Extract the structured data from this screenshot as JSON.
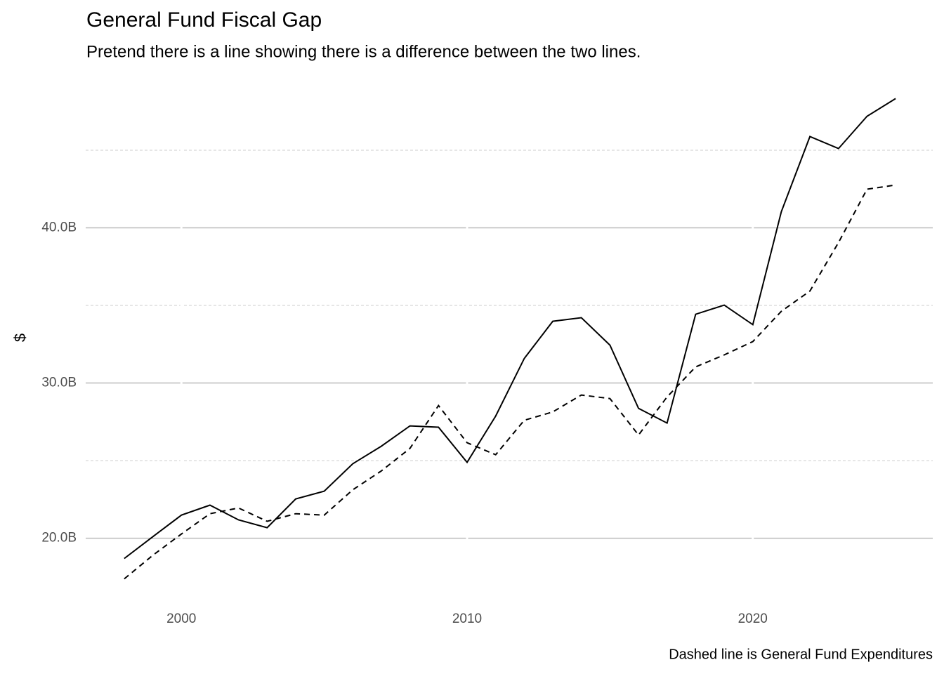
{
  "chart_data": {
    "type": "line",
    "title": "General Fund Fiscal Gap",
    "subtitle": "Pretend there is a line showing there is a difference between the two lines.",
    "y_label": "$",
    "caption": "Dashed line is General Fund Expenditures",
    "x": [
      1998,
      1999,
      2000,
      2001,
      2002,
      2003,
      2004,
      2005,
      2006,
      2007,
      2008,
      2009,
      2010,
      2011,
      2012,
      2013,
      2014,
      2015,
      2016,
      2017,
      2018,
      2019,
      2020,
      2021,
      2022,
      2023,
      2024,
      2025
    ],
    "series": [
      {
        "color": "#000000",
        "dash": false,
        "values": [
          18.69,
          20.1,
          21.49,
          22.13,
          21.18,
          20.68,
          22.53,
          23.03,
          24.8,
          25.93,
          27.24,
          27.15,
          24.89,
          27.87,
          31.58,
          33.98,
          34.21,
          32.44,
          28.37,
          27.42,
          34.43,
          35.02,
          33.76,
          41.04,
          45.88,
          45.11,
          47.19,
          48.33
        ]
      },
      {
        "color": "#000000",
        "dash": true,
        "values": [
          17.38,
          18.9,
          20.27,
          21.58,
          21.95,
          21.09,
          21.58,
          21.49,
          23.12,
          24.34,
          25.79,
          28.55,
          26.15,
          25.38,
          27.6,
          28.14,
          29.23,
          29.0,
          26.65,
          29.1,
          31.04,
          31.81,
          32.67,
          34.62,
          35.93,
          39.05,
          42.49,
          42.76
        ]
      }
    ],
    "xlim": [
      1996.65,
      2026.3
    ],
    "xticks": [
      2000,
      2010,
      2020
    ],
    "ylim": [
      16,
      48.8
    ],
    "yticks": [
      {
        "value": 20,
        "label": "20.0B"
      },
      {
        "value": 30,
        "label": "30.0B"
      },
      {
        "value": 40,
        "label": "40.0B"
      }
    ],
    "yminor": [
      25,
      35,
      45
    ],
    "grid": true
  }
}
